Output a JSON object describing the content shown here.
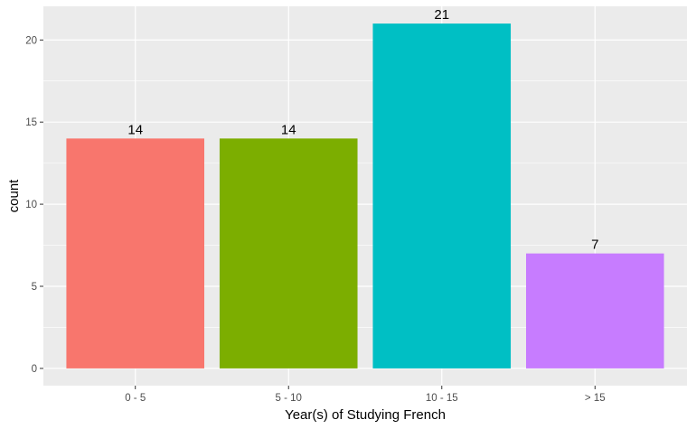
{
  "chart_data": {
    "type": "bar",
    "title": "",
    "xlabel": "Year(s) of Studying French",
    "ylabel": "count",
    "categories": [
      "0 - 5",
      "5 - 10",
      "10 - 15",
      "> 15"
    ],
    "values": [
      14,
      14,
      21,
      7
    ],
    "colors": [
      "#F8766D",
      "#7CAE00",
      "#00BFC4",
      "#C77CFF"
    ],
    "data_labels": [
      "14",
      "14",
      "21",
      "7"
    ],
    "ylim": [
      -1.05,
      22.05
    ],
    "yticks": [
      0,
      5,
      10,
      15,
      20
    ],
    "ytick_labels": [
      "0",
      "5",
      "10",
      "15",
      "20"
    ],
    "panel_background": "#EBEBEB",
    "grid": true,
    "legend": "none"
  }
}
